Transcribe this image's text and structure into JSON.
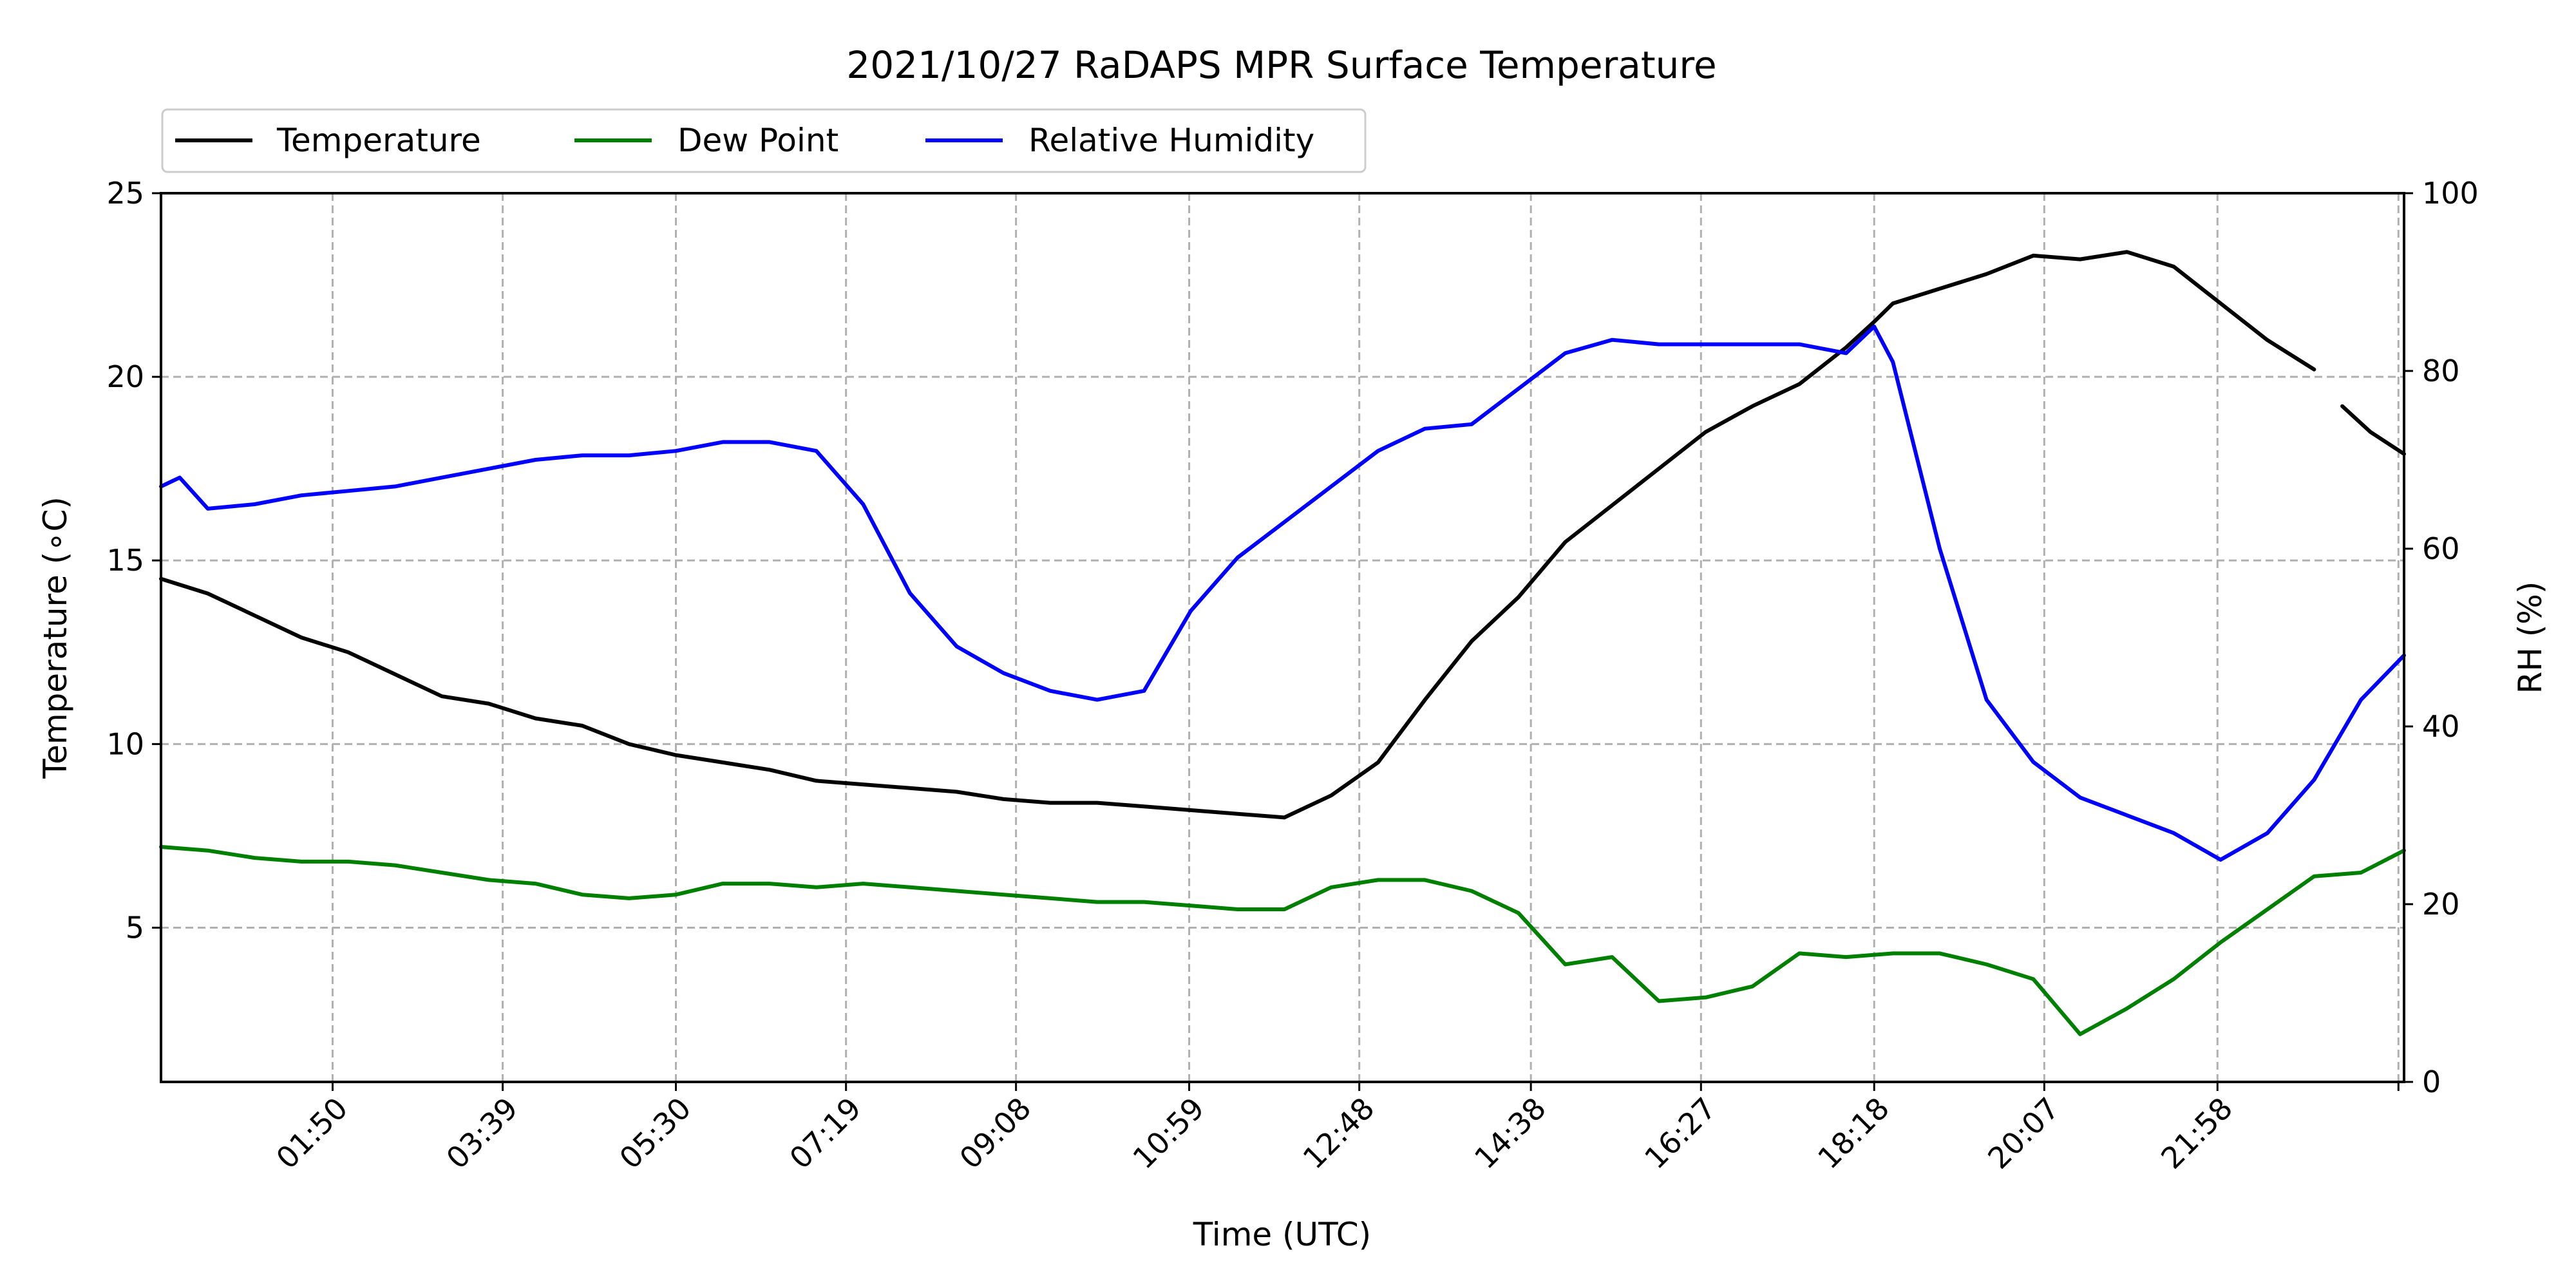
{
  "chart_data": {
    "type": "line",
    "title": "2021/10/27 RaDAPS MPR Surface Temperature",
    "xlabel": "Time (UTC)",
    "ylabel_left": "Temperature (∘C)",
    "ylabel_right": "RH (%)",
    "x_unit": "hours UTC",
    "xlim": [
      0,
      23.96
    ],
    "ylim_left": [
      0.8,
      25
    ],
    "ylim_right": [
      0,
      100
    ],
    "x_ticks": [
      1.833,
      3.65,
      5.5,
      7.317,
      9.133,
      10.983,
      12.8,
      14.633,
      16.45,
      18.3,
      20.117,
      21.967,
      23.9
    ],
    "x_tick_labels": [
      "01:50",
      "03:39",
      "05:30",
      "07:19",
      "09:08",
      "10:59",
      "12:48",
      "14:38",
      "16:27",
      "18:18",
      "20:07",
      "21:58",
      ""
    ],
    "y_ticks_left": [
      5,
      10,
      15,
      20,
      25
    ],
    "y_ticks_right": [
      0,
      20,
      40,
      60,
      80,
      100
    ],
    "grid": true,
    "legend": {
      "placement": "top-left, above plot",
      "entries": [
        "Temperature",
        "Dew Point",
        "Relative Humidity"
      ]
    },
    "series": [
      {
        "name": "Temperature",
        "axis": "left",
        "color": "#000000",
        "x": [
          0.0,
          0.5,
          1.0,
          1.5,
          2.0,
          2.5,
          3.0,
          3.5,
          4.0,
          4.5,
          5.0,
          5.5,
          6.0,
          6.5,
          7.0,
          7.5,
          8.0,
          8.5,
          9.0,
          9.5,
          10.0,
          10.5,
          11.0,
          11.5,
          12.0,
          12.5,
          13.0,
          13.5,
          14.0,
          14.5,
          15.0,
          15.5,
          16.0,
          16.5,
          17.0,
          17.5,
          18.0,
          18.3,
          18.5,
          19.0,
          19.5,
          20.0,
          20.5,
          21.0,
          21.5,
          22.0,
          22.5,
          23.0,
          null,
          23.3,
          23.6,
          23.96
        ],
        "y": [
          14.5,
          14.1,
          13.5,
          12.9,
          12.5,
          11.9,
          11.3,
          11.1,
          10.7,
          10.5,
          10.0,
          9.7,
          9.5,
          9.3,
          9.0,
          8.9,
          8.8,
          8.7,
          8.5,
          8.4,
          8.4,
          8.3,
          8.2,
          8.1,
          8.0,
          8.6,
          9.5,
          11.2,
          12.8,
          14.0,
          15.5,
          16.5,
          17.5,
          18.5,
          19.2,
          19.8,
          20.8,
          21.5,
          22.0,
          22.4,
          22.8,
          23.3,
          23.2,
          23.4,
          23.0,
          22.0,
          21.0,
          20.2,
          null,
          19.2,
          18.5,
          17.9
        ]
      },
      {
        "name": "Dew Point",
        "axis": "left",
        "color": "#008000",
        "x": [
          0.0,
          0.5,
          1.0,
          1.5,
          2.0,
          2.5,
          3.0,
          3.5,
          4.0,
          4.5,
          5.0,
          5.5,
          6.0,
          6.5,
          7.0,
          7.5,
          8.0,
          8.5,
          9.0,
          9.5,
          10.0,
          10.5,
          11.0,
          11.5,
          12.0,
          12.5,
          13.0,
          13.5,
          14.0,
          14.5,
          15.0,
          15.5,
          16.0,
          16.5,
          17.0,
          17.5,
          18.0,
          18.5,
          19.0,
          19.5,
          20.0,
          20.5,
          21.0,
          21.5,
          22.0,
          22.5,
          23.0,
          23.5,
          23.96
        ],
        "y": [
          7.2,
          7.1,
          6.9,
          6.8,
          6.8,
          6.7,
          6.5,
          6.3,
          6.2,
          5.9,
          5.8,
          5.9,
          6.2,
          6.2,
          6.1,
          6.2,
          6.1,
          6.0,
          5.9,
          5.8,
          5.7,
          5.7,
          5.6,
          5.5,
          5.5,
          6.1,
          6.3,
          6.3,
          6.0,
          5.4,
          4.0,
          4.2,
          3.0,
          3.1,
          3.4,
          4.3,
          4.2,
          4.3,
          4.3,
          4.0,
          3.6,
          2.1,
          2.8,
          3.6,
          4.6,
          5.5,
          6.4,
          6.5,
          7.1
        ]
      },
      {
        "name": "Relative Humidity",
        "axis": "right",
        "color": "#0000ff",
        "x": [
          0.0,
          0.2,
          0.5,
          1.0,
          1.5,
          2.0,
          2.5,
          3.0,
          3.5,
          4.0,
          4.5,
          5.0,
          5.5,
          6.0,
          6.5,
          7.0,
          7.5,
          8.0,
          8.5,
          9.0,
          9.5,
          10.0,
          10.5,
          11.0,
          11.5,
          12.0,
          12.5,
          13.0,
          13.5,
          14.0,
          14.5,
          15.0,
          15.5,
          16.0,
          16.5,
          17.0,
          17.5,
          18.0,
          18.3,
          18.5,
          19.0,
          19.5,
          20.0,
          20.5,
          21.0,
          21.5,
          22.0,
          22.5,
          23.0,
          23.5,
          23.96
        ],
        "y": [
          67,
          68,
          64.5,
          65,
          66,
          66.5,
          67,
          68,
          69,
          70,
          70.5,
          70.5,
          71,
          72,
          72,
          71,
          65,
          55,
          49,
          46,
          44,
          43,
          44,
          53,
          59,
          63,
          67,
          71,
          73.5,
          74,
          78,
          82,
          83.5,
          83,
          83,
          83,
          83,
          82,
          85,
          81,
          60,
          43,
          36,
          32,
          30,
          28,
          25,
          28,
          34,
          43,
          48
        ]
      }
    ]
  }
}
